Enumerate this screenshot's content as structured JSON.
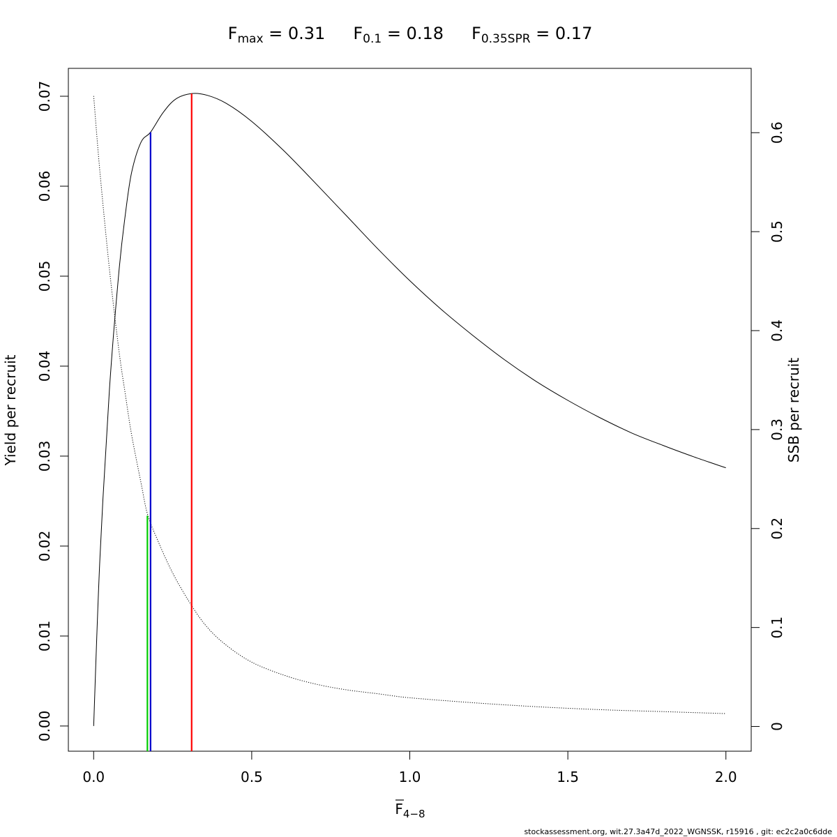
{
  "chart_data": {
    "type": "line",
    "title_parts": [
      {
        "base": "F",
        "sub": "max",
        "value": " = 0.31"
      },
      {
        "base": "F",
        "sub": "0.1",
        "value": " = 0.18"
      },
      {
        "base": "F",
        "sub": "0.35SPR",
        "value": " = 0.17"
      }
    ],
    "xlabel": {
      "base": "F",
      "sub": "4−8",
      "overline": true
    },
    "ylabel": "Yield per recruit",
    "y2label": "SSB per recruit",
    "xlim": [
      -0.08,
      2.08
    ],
    "ylim": [
      -0.0028,
      0.0731
    ],
    "y2lim": [
      -0.025,
      0.665
    ],
    "x_ticks": [
      0,
      0.5,
      1,
      1.5,
      2
    ],
    "x_tick_labels": [
      "0.0",
      "0.5",
      "1.0",
      "1.5",
      "2.0"
    ],
    "y_ticks": [
      0,
      0.01,
      0.02,
      0.03,
      0.04,
      0.05,
      0.06,
      0.07
    ],
    "y_tick_labels": [
      "0.00",
      "0.01",
      "0.02",
      "0.03",
      "0.04",
      "0.05",
      "0.06",
      "0.07"
    ],
    "y2_ticks": [
      0,
      0.1,
      0.2,
      0.3,
      0.4,
      0.5,
      0.6
    ],
    "y2_tick_labels": [
      "0",
      "0.1",
      "0.2",
      "0.3",
      "0.4",
      "0.5",
      "0.6"
    ],
    "series": [
      {
        "axis": "left",
        "style": "solid",
        "color": "#000000",
        "x": [
          0,
          0.02,
          0.05,
          0.08,
          0.1,
          0.12,
          0.15,
          0.18,
          0.22,
          0.26,
          0.31,
          0.36,
          0.42,
          0.5,
          0.6,
          0.7,
          0.8,
          0.9,
          1.0,
          1.1,
          1.2,
          1.3,
          1.4,
          1.5,
          1.6,
          1.7,
          1.8,
          1.9,
          2.0
        ],
        "y": [
          0,
          0.0187,
          0.0374,
          0.0505,
          0.0568,
          0.0615,
          0.0649,
          0.066,
          0.0682,
          0.0697,
          0.0703,
          0.0701,
          0.0692,
          0.0672,
          0.064,
          0.0604,
          0.0567,
          0.053,
          0.0495,
          0.0463,
          0.0434,
          0.0407,
          0.0383,
          0.0362,
          0.0343,
          0.0326,
          0.0312,
          0.0299,
          0.0287
        ]
      },
      {
        "axis": "right",
        "style": "dotted",
        "color": "#000000",
        "x": [
          0,
          0.02,
          0.05,
          0.08,
          0.1,
          0.12,
          0.15,
          0.17,
          0.2,
          0.25,
          0.31,
          0.36,
          0.42,
          0.5,
          0.6,
          0.7,
          0.8,
          0.9,
          1.0,
          1.2,
          1.4,
          1.6,
          1.8,
          2.0
        ],
        "y": [
          0.637,
          0.56,
          0.462,
          0.38,
          0.336,
          0.295,
          0.246,
          0.215,
          0.19,
          0.155,
          0.122,
          0.1,
          0.082,
          0.065,
          0.052,
          0.043,
          0.037,
          0.033,
          0.029,
          0.024,
          0.02,
          0.017,
          0.015,
          0.013
        ]
      }
    ],
    "reference_lines": [
      {
        "label": "F0.35SPR",
        "x": 0.17,
        "axis": "right",
        "y_top": 0.213,
        "color": "#00cc00"
      },
      {
        "label": "F0.1",
        "x": 0.18,
        "axis": "left",
        "y_top": 0.066,
        "color": "#0000cc"
      },
      {
        "label": "Fmax",
        "x": 0.31,
        "axis": "left",
        "y_top": 0.0703,
        "color": "#ff0000"
      }
    ]
  },
  "footer": "stockassessment.org, wit.27.3a47d_2022_WGNSSK, r15916 , git: ec2c2a0c6dde"
}
